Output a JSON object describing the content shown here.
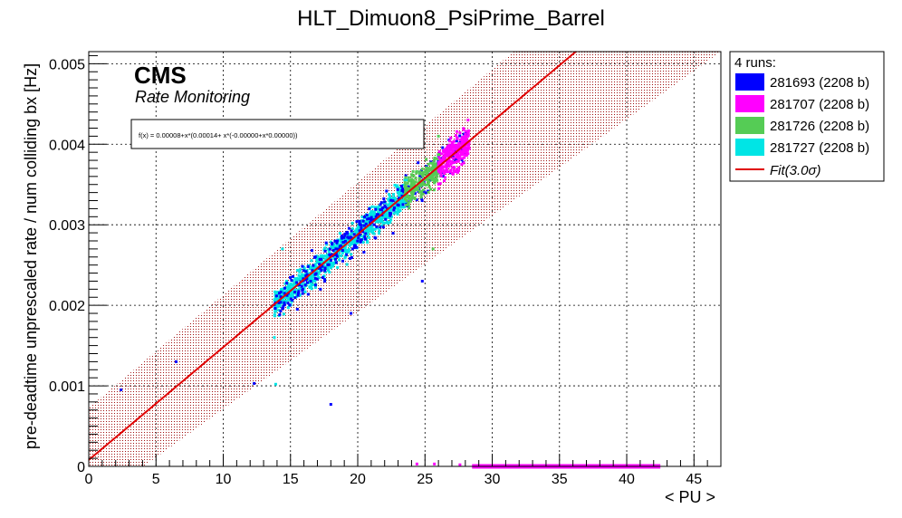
{
  "chart_data": {
    "type": "scatter",
    "title": "HLT_Dimuon8_PsiPrime_Barrel",
    "xlabel": "< PU >",
    "ylabel": "pre-deadtime unprescaled rate / num colliding bx [Hz]",
    "xlim": [
      0,
      47
    ],
    "ylim": [
      0,
      0.00515
    ],
    "x_ticks": [
      "0",
      "5",
      "10",
      "15",
      "20",
      "25",
      "30",
      "35",
      "40",
      "45"
    ],
    "y_ticks": [
      "0",
      "0.001",
      "0.002",
      "0.003",
      "0.004",
      "0.005"
    ],
    "grid": true,
    "legend_position": "right",
    "legend_header": "4 runs:",
    "brand": "CMS",
    "brand_sub": "Rate Monitoring",
    "fit_formula": "f(x) = 0.00008+x*(0.00014+ x*(-0.00000+x*0.00000))",
    "fit_label": "Fit(3.0σ)",
    "fit": {
      "c0": 8e-05,
      "c1": 0.00014,
      "band_sigma": 3.0,
      "band_halfwidth": 0.00065,
      "color": "#e00000"
    },
    "series": [
      {
        "name": "281693 (2208 b)",
        "color": "#0000ff",
        "pu_range": [
          13.8,
          28.2
        ],
        "center_pu": 21,
        "spread": 0.00026,
        "extra_points": [
          [
            2.4,
            0.00095
          ],
          [
            6.5,
            0.0013
          ],
          [
            12.3,
            0.00103
          ],
          [
            18,
            0.00077
          ],
          [
            19.5,
            0.0019
          ],
          [
            24.8,
            0.0023
          ]
        ]
      },
      {
        "name": "281707 (2208 b)",
        "color": "#ff00ff",
        "pu_range": [
          26.0,
          28.3
        ],
        "center_pu": 27.2,
        "spread": 0.00025,
        "zero_rate_pu_range": [
          28.5,
          42.5
        ],
        "extra_points": [
          [
            28.2,
            0.0043
          ],
          [
            24.4,
            3e-05
          ],
          [
            25.7,
            3e-05
          ],
          [
            27.6,
            2e-05
          ]
        ]
      },
      {
        "name": "281726 (2208 b)",
        "color": "#55cc55",
        "pu_range": [
          23.5,
          26.2
        ],
        "center_pu": 25,
        "spread": 0.00022,
        "extra_points": [
          [
            26,
            0.0041
          ],
          [
            25.6,
            0.0027
          ]
        ]
      },
      {
        "name": "281727 (2208 b)",
        "color": "#00e5e5",
        "pu_range": [
          13.8,
          23.8
        ],
        "center_pu": 18.5,
        "spread": 0.0002,
        "extra_points": [
          [
            14.4,
            0.0027
          ],
          [
            13.9,
            0.00102
          ],
          [
            13.8,
            0.0016
          ]
        ]
      }
    ]
  }
}
